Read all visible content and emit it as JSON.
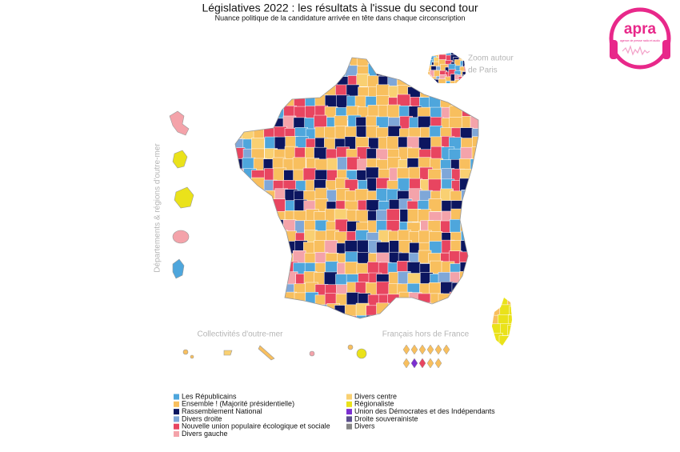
{
  "title": "Législatives 2022 : les résultats à l'issue du second tour",
  "subtitle": "Nuance politique de la candidature arrivée en tête dans chaque circonscription",
  "map_labels": {
    "paris_zoom": [
      "Zoom autour",
      "de Paris"
    ],
    "overseas_departments": "Départements & régions d'outre-mer",
    "overseas_collectivities": "Collectivités d'outre-mer",
    "abroad": "Français hors de France"
  },
  "legend": [
    {
      "label": "Les Républicains",
      "color": "#4ea6dc"
    },
    {
      "label": "Ensemble ! (Majorité présidentielle)",
      "color": "#f8bf5e"
    },
    {
      "label": "Rassemblement National",
      "color": "#0c1660"
    },
    {
      "label": "Divers droite",
      "color": "#7fa7d8"
    },
    {
      "label": "Nouvelle union populaire écologique et sociale",
      "color": "#e84560"
    },
    {
      "label": "Divers gauche",
      "color": "#f4a3aa"
    },
    {
      "label": "Divers centre",
      "color": "#f9d072"
    },
    {
      "label": "Régionaliste",
      "color": "#eae21a"
    },
    {
      "label": "Union des Démocrates et des Indépendants",
      "color": "#7b2fd0"
    },
    {
      "label": "Droite souverainiste",
      "color": "#5b4f8c"
    },
    {
      "label": "Divers",
      "color": "#858585"
    }
  ],
  "logo": {
    "name": "apra",
    "tagline": "agence de presse radio et audio"
  }
}
